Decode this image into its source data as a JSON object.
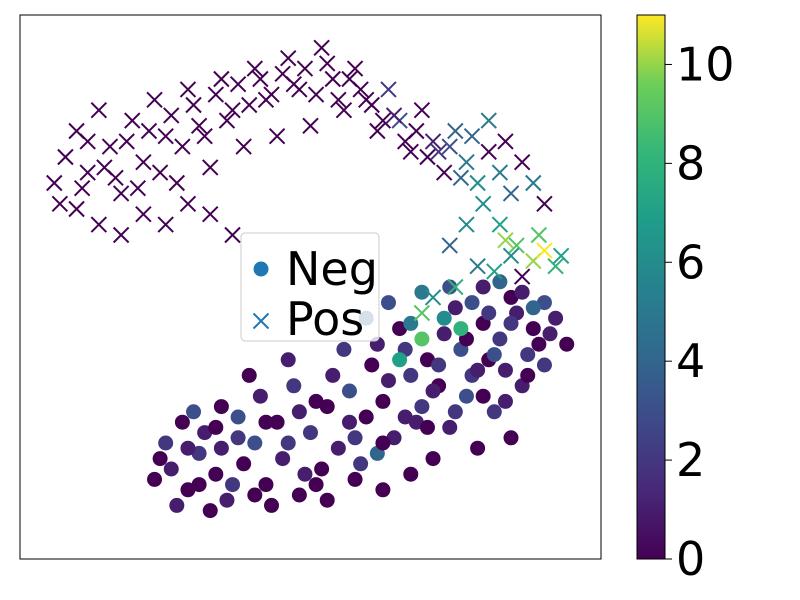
{
  "chart_data": {
    "type": "scatter",
    "title": "",
    "xlabel": "",
    "ylabel": "",
    "xlim": [
      0,
      100
    ],
    "ylim": [
      0,
      100
    ],
    "axes_ticks_shown": false,
    "grid": false,
    "legend": {
      "placement": "center-left",
      "entries": [
        {
          "name": "Neg",
          "marker": "circle",
          "color": "#1f77b4"
        },
        {
          "name": "Pos",
          "marker": "x",
          "color": "#1f77b4"
        }
      ]
    },
    "colorbar": {
      "colormap": "viridis",
      "range": [
        0,
        11
      ],
      "ticks": [
        0,
        2,
        4,
        6,
        8,
        10
      ],
      "tick_labels": [
        "0",
        "2",
        "4",
        "6",
        "8",
        "10"
      ],
      "placement": "right"
    },
    "series": [
      {
        "name": "Neg",
        "marker": "circle",
        "points": [
          [
            22,
            13,
            0
          ],
          [
            25,
            15,
            1
          ],
          [
            28,
            11,
            0
          ],
          [
            30,
            18,
            2
          ],
          [
            33,
            14,
            0
          ],
          [
            35,
            9,
            1
          ],
          [
            38,
            16,
            0
          ],
          [
            40,
            20,
            3
          ],
          [
            42,
            12,
            0
          ],
          [
            45,
            17,
            1
          ],
          [
            48,
            10,
            0
          ],
          [
            50,
            22,
            2
          ],
          [
            52,
            15,
            0
          ],
          [
            55,
            19,
            1
          ],
          [
            58,
            13,
            0
          ],
          [
            60,
            25,
            0
          ],
          [
            62,
            18,
            4
          ],
          [
            65,
            21,
            1
          ],
          [
            68,
            14,
            0
          ],
          [
            70,
            27,
            2
          ],
          [
            72,
            17,
            0
          ],
          [
            75,
            23,
            1
          ],
          [
            78,
            29,
            3
          ],
          [
            80,
            19,
            0
          ],
          [
            83,
            26,
            2
          ],
          [
            86,
            21,
            0
          ],
          [
            88,
            31,
            1
          ],
          [
            24,
            20,
            2
          ],
          [
            27,
            24,
            0
          ],
          [
            31,
            22,
            1
          ],
          [
            34,
            27,
            0
          ],
          [
            37,
            25,
            3
          ],
          [
            41,
            29,
            1
          ],
          [
            44,
            24,
            0
          ],
          [
            47,
            31,
            2
          ],
          [
            51,
            28,
            0
          ],
          [
            54,
            33,
            1
          ],
          [
            57,
            30,
            3
          ],
          [
            61,
            35,
            0
          ],
          [
            64,
            32,
            1
          ],
          [
            67,
            38,
            2
          ],
          [
            71,
            36,
            0
          ],
          [
            74,
            41,
            1
          ],
          [
            77,
            38,
            3
          ],
          [
            81,
            43,
            0
          ],
          [
            84,
            40,
            2
          ],
          [
            87,
            45,
            1
          ],
          [
            90,
            42,
            0
          ],
          [
            92,
            47,
            3
          ],
          [
            94,
            44,
            1
          ],
          [
            96,
            39,
            0
          ],
          [
            26,
            8,
            1
          ],
          [
            32,
            7,
            0
          ],
          [
            36,
            12,
            2
          ],
          [
            43,
            8,
            0
          ],
          [
            49,
            14,
            1
          ],
          [
            53,
            9,
            0
          ],
          [
            59,
            16,
            2
          ],
          [
            63,
            11,
            0
          ],
          [
            69,
            24,
            1
          ],
          [
            73,
            31,
            0
          ],
          [
            79,
            33,
            2
          ],
          [
            82,
            36,
            0
          ],
          [
            85,
            34,
            1
          ],
          [
            89,
            37,
            2
          ],
          [
            91,
            39,
            0
          ],
          [
            93,
            41,
            1
          ],
          [
            29,
            26,
            3
          ],
          [
            39,
            33,
            0
          ],
          [
            46,
            36,
            1
          ],
          [
            56,
            38,
            2
          ],
          [
            66,
            42,
            0
          ],
          [
            76,
            46,
            1
          ],
          [
            86,
            48,
            0
          ],
          [
            30,
            12,
            0
          ],
          [
            34,
            19,
            1
          ],
          [
            40,
            10,
            0
          ],
          [
            46,
            20,
            2
          ],
          [
            51,
            12,
            0
          ],
          [
            57,
            24,
            1
          ],
          [
            63,
            28,
            0
          ],
          [
            68,
            33,
            2
          ],
          [
            72,
            30,
            1
          ],
          [
            78,
            40,
            0
          ],
          [
            82,
            45,
            2
          ],
          [
            88,
            49,
            1
          ],
          [
            60,
            44,
            4
          ],
          [
            64,
            47,
            3
          ],
          [
            70,
            49,
            5
          ],
          [
            74,
            44,
            6
          ],
          [
            79,
            47,
            3
          ],
          [
            84,
            51,
            4
          ],
          [
            23,
            17,
            0
          ],
          [
            28,
            19,
            1
          ],
          [
            33,
            23,
            0
          ],
          [
            37,
            21,
            2
          ],
          [
            42,
            24,
            0
          ],
          [
            48,
            26,
            1
          ],
          [
            53,
            27,
            0
          ],
          [
            58,
            21,
            2
          ],
          [
            63,
            20,
            0
          ],
          [
            67,
            25,
            1
          ],
          [
            71,
            23,
            0
          ],
          [
            76,
            26,
            2
          ],
          [
            81,
            29,
            0
          ],
          [
            85,
            28,
            1
          ],
          [
            89,
            33,
            0
          ],
          [
            92,
            35,
            2
          ],
          [
            66,
            36,
            7
          ],
          [
            70,
            40,
            9
          ],
          [
            73,
            35,
            2
          ],
          [
            77,
            42,
            8
          ],
          [
            80,
            34,
            1
          ],
          [
            83,
            37,
            3
          ],
          [
            86,
            43,
            2
          ],
          [
            90,
            46,
            4
          ],
          [
            62,
            39,
            1
          ],
          [
            68,
            43,
            5
          ],
          [
            75,
            50,
            3
          ],
          [
            81,
            50,
            1
          ]
        ]
      },
      {
        "name": "Pos",
        "marker": "x",
        "points": [
          [
            4,
            70,
            0
          ],
          [
            6,
            75,
            0
          ],
          [
            8,
            80,
            0
          ],
          [
            10,
            72,
            0
          ],
          [
            12,
            84,
            0
          ],
          [
            14,
            77,
            0
          ],
          [
            16,
            68,
            0
          ],
          [
            18,
            82,
            0
          ],
          [
            20,
            74,
            0
          ],
          [
            22,
            86,
            0
          ],
          [
            24,
            79,
            0
          ],
          [
            26,
            70,
            0
          ],
          [
            28,
            88,
            0
          ],
          [
            30,
            81,
            0
          ],
          [
            32,
            73,
            0
          ],
          [
            34,
            90,
            0
          ],
          [
            36,
            84,
            0
          ],
          [
            38,
            77,
            0
          ],
          [
            40,
            92,
            0
          ],
          [
            42,
            86,
            0
          ],
          [
            44,
            79,
            0
          ],
          [
            46,
            94,
            0
          ],
          [
            48,
            88,
            0
          ],
          [
            50,
            81,
            0
          ],
          [
            52,
            96,
            0
          ],
          [
            54,
            90,
            0
          ],
          [
            56,
            84,
            0
          ],
          [
            58,
            92,
            0
          ],
          [
            60,
            86,
            0
          ],
          [
            62,
            80,
            0
          ],
          [
            64,
            88,
            2
          ],
          [
            66,
            82,
            3
          ],
          [
            68,
            76,
            0
          ],
          [
            70,
            84,
            0
          ],
          [
            72,
            78,
            1
          ],
          [
            74,
            72,
            0
          ],
          [
            76,
            80,
            4
          ],
          [
            78,
            74,
            5
          ],
          [
            80,
            70,
            6
          ],
          [
            82,
            76,
            0
          ],
          [
            84,
            72,
            5
          ],
          [
            86,
            68,
            4
          ],
          [
            88,
            74,
            0
          ],
          [
            90,
            70,
            5
          ],
          [
            92,
            66,
            0
          ],
          [
            8,
            65,
            0
          ],
          [
            12,
            62,
            0
          ],
          [
            16,
            60,
            0
          ],
          [
            20,
            64,
            0
          ],
          [
            24,
            62,
            0
          ],
          [
            28,
            66,
            0
          ],
          [
            32,
            64,
            0
          ],
          [
            36,
            60,
            0
          ],
          [
            5,
            66,
            0
          ],
          [
            9,
            69,
            0
          ],
          [
            13,
            73,
            0
          ],
          [
            17,
            78,
            0
          ],
          [
            21,
            80,
            0
          ],
          [
            25,
            83,
            0
          ],
          [
            29,
            85,
            0
          ],
          [
            33,
            87,
            0
          ],
          [
            37,
            89,
            0
          ],
          [
            41,
            90,
            0
          ],
          [
            45,
            91,
            0
          ],
          [
            49,
            92,
            0
          ],
          [
            53,
            93,
            0
          ],
          [
            57,
            90,
            0
          ],
          [
            61,
            85,
            0
          ],
          [
            65,
            83,
            1
          ],
          [
            69,
            80,
            0
          ],
          [
            73,
            76,
            2
          ],
          [
            77,
            71,
            4
          ],
          [
            81,
            66,
            6
          ],
          [
            84,
            62,
            7
          ],
          [
            87,
            58,
            9
          ],
          [
            90,
            55,
            10
          ],
          [
            92,
            57,
            11
          ],
          [
            94,
            54,
            8
          ],
          [
            88,
            52,
            0
          ],
          [
            86,
            56,
            6
          ],
          [
            83,
            53,
            7
          ],
          [
            80,
            54,
            5
          ],
          [
            76,
            50,
            8
          ],
          [
            72,
            48,
            6
          ],
          [
            70,
            45,
            9
          ],
          [
            75,
            58,
            4
          ],
          [
            78,
            62,
            6
          ],
          [
            85,
            59,
            10
          ],
          [
            91,
            60,
            9
          ],
          [
            95,
            56,
            7
          ],
          [
            10,
            78,
            0
          ],
          [
            15,
            71,
            0
          ],
          [
            19,
            69,
            0
          ],
          [
            23,
            72,
            0
          ],
          [
            27,
            77,
            0
          ],
          [
            31,
            79,
            0
          ],
          [
            35,
            82,
            0
          ],
          [
            39,
            85,
            0
          ],
          [
            43,
            87,
            0
          ],
          [
            47,
            89,
            0
          ],
          [
            51,
            87,
            0
          ],
          [
            55,
            86,
            0
          ],
          [
            59,
            88,
            0
          ],
          [
            63,
            82,
            0
          ],
          [
            67,
            78,
            0
          ],
          [
            71,
            75,
            0
          ],
          [
            75,
            77,
            3
          ],
          [
            79,
            79,
            4
          ],
          [
            82,
            82,
            5
          ],
          [
            85,
            78,
            0
          ]
        ]
      }
    ]
  }
}
